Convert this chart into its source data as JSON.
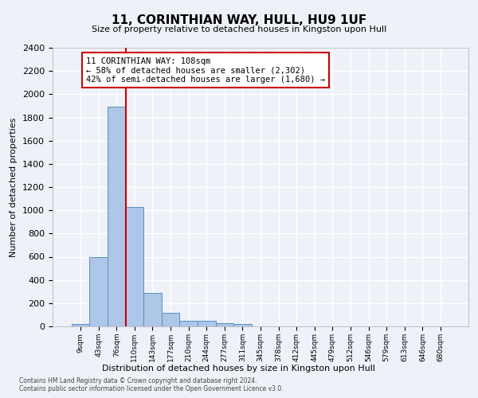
{
  "title": "11, CORINTHIAN WAY, HULL, HU9 1UF",
  "subtitle": "Size of property relative to detached houses in Kingston upon Hull",
  "xlabel": "Distribution of detached houses by size in Kingston upon Hull",
  "ylabel": "Number of detached properties",
  "bar_labels": [
    "9sqm",
    "43sqm",
    "76sqm",
    "110sqm",
    "143sqm",
    "177sqm",
    "210sqm",
    "244sqm",
    "277sqm",
    "311sqm",
    "345sqm",
    "378sqm",
    "412sqm",
    "445sqm",
    "479sqm",
    "512sqm",
    "546sqm",
    "579sqm",
    "613sqm",
    "646sqm",
    "680sqm"
  ],
  "bar_values": [
    20,
    600,
    1890,
    1030,
    290,
    120,
    50,
    45,
    30,
    20,
    0,
    0,
    0,
    0,
    0,
    0,
    0,
    0,
    0,
    0,
    0
  ],
  "bar_color": "#aec6e8",
  "bar_edge_color": "#5a8fc2",
  "property_line_x": 2.5,
  "property_line_color": "#cc0000",
  "annotation_text": "11 CORINTHIAN WAY: 108sqm\n← 58% of detached houses are smaller (2,302)\n42% of semi-detached houses are larger (1,680) →",
  "annotation_box_color": "#cc0000",
  "ylim": [
    0,
    2400
  ],
  "yticks": [
    0,
    200,
    400,
    600,
    800,
    1000,
    1200,
    1400,
    1600,
    1800,
    2000,
    2200,
    2400
  ],
  "footer_line1": "Contains HM Land Registry data © Crown copyright and database right 2024.",
  "footer_line2": "Contains public sector information licensed under the Open Government Licence v3.0.",
  "bg_color": "#eef2f8",
  "grid_color": "#ffffff"
}
